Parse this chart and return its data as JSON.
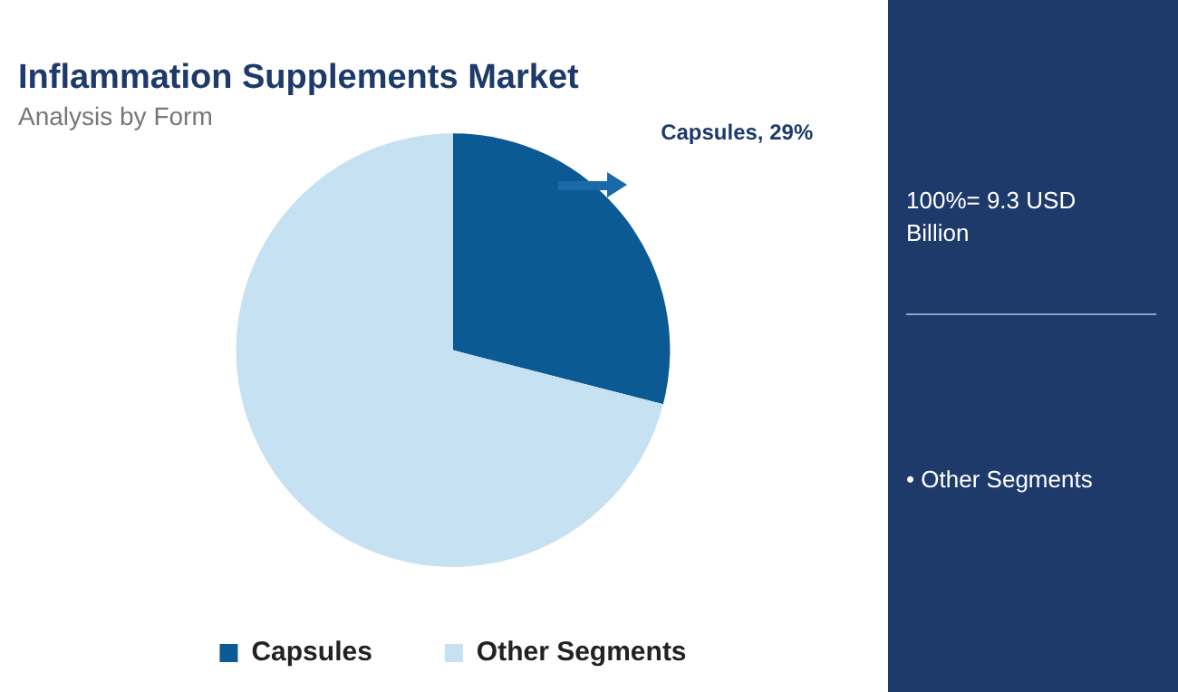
{
  "chart_data": {
    "type": "pie",
    "title": "Inflammation Supplements Market",
    "subtitle": "Analysis by Form",
    "categories": [
      "Capsules",
      "Other Segments"
    ],
    "values": [
      29,
      71
    ],
    "colors": [
      "#0b5a94",
      "#c6e1f1"
    ],
    "value_labels": [
      "Capsules, 29%",
      null
    ],
    "legend": "bottom",
    "annotations": [
      "100%= 9.3 USD Billion",
      "• Other Segments"
    ]
  }
}
